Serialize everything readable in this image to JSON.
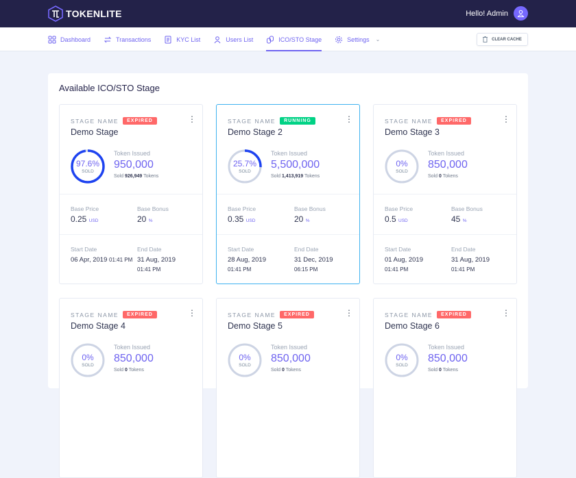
{
  "header": {
    "brand": "TOKENLITE",
    "greeting": "Hello! Admin"
  },
  "nav": {
    "items": [
      {
        "label": "Dashboard",
        "icon": "grid-icon"
      },
      {
        "label": "Transactions",
        "icon": "arrows-icon"
      },
      {
        "label": "KYC List",
        "icon": "document-icon"
      },
      {
        "label": "Users List",
        "icon": "users-icon"
      },
      {
        "label": "ICO/STO Stage",
        "icon": "coins-icon",
        "active": true
      },
      {
        "label": "Settings",
        "icon": "gear-icon",
        "dropdown": true
      }
    ],
    "clear_cache": "CLEAR CACHE"
  },
  "page": {
    "title": "Available ICO/STO Stage"
  },
  "labels": {
    "stage_name": "STAGE NAME",
    "token_issued": "Token Issued",
    "sold": "SOLD",
    "sold_prefix": "Sold",
    "tokens": "Tokens",
    "base_price": "Base Price",
    "base_bonus": "Base Bonus",
    "start_date": "Start Date",
    "end_date": "End Date",
    "usd": "USD",
    "pct": "%"
  },
  "colors": {
    "expired": "#ff6868",
    "running": "#00d285",
    "accent": "#6e63f0",
    "ring": "#1e43f0",
    "ring_bg": "#cdd4e4"
  },
  "stages": [
    {
      "name": "Demo Stage",
      "status": "EXPIRED",
      "percent": "97.6%",
      "percent_value": 97.6,
      "issued": "950,000",
      "sold": "926,949",
      "price": "0.25",
      "bonus": "20",
      "start": "06 Apr, 2019",
      "start_time": "01:41 PM",
      "end": "31 Aug, 2019",
      "end_time": "01:41 PM"
    },
    {
      "name": "Demo Stage 2",
      "status": "RUNNING",
      "percent": "25.7%",
      "percent_value": 25.7,
      "issued": "5,500,000",
      "sold": "1,413,919",
      "price": "0.35",
      "bonus": "20",
      "start": "28 Aug, 2019",
      "start_time": "01:41 PM",
      "end": "31 Dec, 2019",
      "end_time": "06:15 PM"
    },
    {
      "name": "Demo Stage 3",
      "status": "EXPIRED",
      "percent": "0%",
      "percent_value": 0,
      "issued": "850,000",
      "sold": "0",
      "price": "0.5",
      "bonus": "45",
      "start": "01 Aug, 2019",
      "start_time": "01:41 PM",
      "end": "31 Aug, 2019",
      "end_time": "01:41 PM"
    },
    {
      "name": "Demo Stage 4",
      "status": "EXPIRED",
      "percent": "0%",
      "percent_value": 0,
      "issued": "850,000",
      "sold": "0"
    },
    {
      "name": "Demo Stage 5",
      "status": "EXPIRED",
      "percent": "0%",
      "percent_value": 0,
      "issued": "850,000",
      "sold": "0"
    },
    {
      "name": "Demo Stage 6",
      "status": "EXPIRED",
      "percent": "0%",
      "percent_value": 0,
      "issued": "850,000",
      "sold": "0"
    }
  ]
}
